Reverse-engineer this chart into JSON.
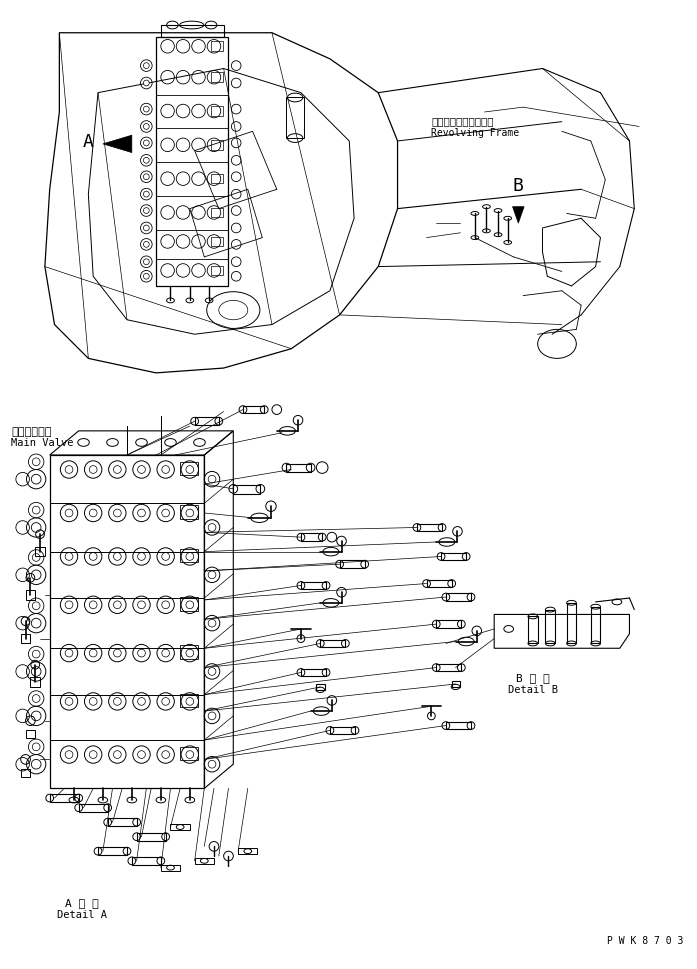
{
  "bg_color": "#ffffff",
  "line_color": "#000000",
  "fig_width": 6.97,
  "fig_height": 9.7,
  "dpi": 100,
  "label_A": "A",
  "label_B": "B",
  "label_main_valve_jp": "メインバルブ",
  "label_main_valve_en": "Main Valve",
  "label_revolving_jp": "レボルビングフレーム",
  "label_revolving_en": "Revolving Frame",
  "label_detail_a_jp": "A 詳 細",
  "label_detail_a_en": "Detail A",
  "label_detail_b_jp": "B 詳 細",
  "label_detail_b_en": "Detail B",
  "label_pwk": "P W K 8 7 0 3"
}
